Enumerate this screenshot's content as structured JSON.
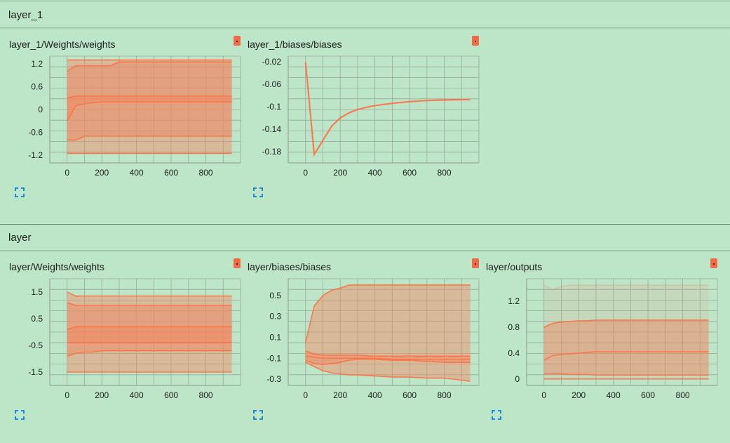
{
  "sections": [
    {
      "title": "layer_1"
    },
    {
      "title": "layer"
    }
  ],
  "charts": {
    "c1": {
      "title": "layer_1/Weights/weights",
      "xticks": [
        "0",
        "200",
        "400",
        "600",
        "800"
      ],
      "yticks": [
        "1.2",
        "0.6",
        "0",
        "-0.6",
        "-1.2"
      ]
    },
    "c2": {
      "title": "layer_1/biases/biases",
      "xticks": [
        "0",
        "200",
        "400",
        "600",
        "800"
      ],
      "yticks": [
        "-0.02",
        "-0.06",
        "-0.1",
        "-0.14",
        "-0.18"
      ]
    },
    "c3": {
      "title": "layer/Weights/weights",
      "xticks": [
        "0",
        "200",
        "400",
        "600",
        "800"
      ],
      "yticks": [
        "1.5",
        "0.5",
        "-0.5",
        "-1.5"
      ]
    },
    "c4": {
      "title": "layer/biases/biases",
      "xticks": [
        "0",
        "200",
        "400",
        "600",
        "800"
      ],
      "yticks": [
        "0.5",
        "0.3",
        "0.1",
        "-0.1",
        "-0.3"
      ]
    },
    "c5": {
      "title": "layer/outputs",
      "xticks": [
        "0",
        "200",
        "400",
        "600",
        "800"
      ],
      "yticks": [
        "1.2",
        "0.8",
        "0.4",
        "0"
      ]
    }
  },
  "colors": {
    "series": "#ff7043",
    "band": "#f4845f",
    "grid": "#9aa89e",
    "background": "#bde5c8"
  },
  "icons": {
    "flag": "orange-tag-icon",
    "expand": "fullscreen-icon"
  },
  "chart_data": [
    {
      "type": "area",
      "title": "layer_1/Weights/weights",
      "x": [
        0,
        50,
        100,
        150,
        200,
        250,
        300,
        400,
        500,
        600,
        700,
        800,
        950
      ],
      "ylim": [
        -1.4,
        1.4
      ],
      "series": [
        {
          "values": [
            1.3,
            1.3,
            1.3,
            1.3,
            1.3,
            1.3,
            1.3,
            1.3,
            1.3,
            1.3,
            1.3,
            1.3,
            1.3
          ]
        },
        {
          "values": [
            1.0,
            1.15,
            1.15,
            1.15,
            1.15,
            1.15,
            1.25,
            1.25,
            1.25,
            1.25,
            1.25,
            1.25,
            1.25
          ]
        },
        {
          "values": [
            0.3,
            0.35,
            0.35,
            0.35,
            0.35,
            0.35,
            0.35,
            0.35,
            0.35,
            0.35,
            0.35,
            0.35,
            0.35
          ]
        },
        {
          "values": [
            -0.3,
            0.1,
            0.15,
            0.18,
            0.2,
            0.2,
            0.2,
            0.2,
            0.2,
            0.2,
            0.2,
            0.2,
            0.2
          ]
        },
        {
          "values": [
            -0.8,
            -0.8,
            -0.7,
            -0.7,
            -0.7,
            -0.7,
            -0.7,
            -0.7,
            -0.7,
            -0.7,
            -0.7,
            -0.7,
            -0.7
          ]
        },
        {
          "values": [
            -1.15,
            -1.15,
            -1.15,
            -1.15,
            -1.15,
            -1.15,
            -1.15,
            -1.15,
            -1.15,
            -1.15,
            -1.15,
            -1.15,
            -1.15
          ]
        }
      ]
    },
    {
      "type": "line",
      "title": "layer_1/biases/biases",
      "x": [
        0,
        50,
        100,
        150,
        200,
        250,
        300,
        350,
        400,
        500,
        600,
        700,
        800,
        950
      ],
      "ylim": [
        -0.2,
        -0.01
      ],
      "series": [
        {
          "values": [
            -0.021,
            -0.185,
            -0.16,
            -0.135,
            -0.12,
            -0.111,
            -0.105,
            -0.101,
            -0.098,
            -0.094,
            -0.091,
            -0.089,
            -0.088,
            -0.087
          ]
        }
      ]
    },
    {
      "type": "area",
      "title": "layer/Weights/weights",
      "x": [
        0,
        50,
        100,
        150,
        200,
        250,
        300,
        400,
        500,
        600,
        700,
        800,
        950
      ],
      "ylim": [
        -2.0,
        2.0
      ],
      "series": [
        {
          "values": [
            1.5,
            1.35,
            1.35,
            1.35,
            1.35,
            1.35,
            1.35,
            1.35,
            1.35,
            1.35,
            1.35,
            1.35,
            1.35
          ]
        },
        {
          "values": [
            1.1,
            1.0,
            1.0,
            1.0,
            1.0,
            1.0,
            1.0,
            1.0,
            1.0,
            1.0,
            1.0,
            1.0,
            1.0
          ]
        },
        {
          "values": [
            0.1,
            0.2,
            0.2,
            0.2,
            0.2,
            0.2,
            0.2,
            0.2,
            0.2,
            0.2,
            0.2,
            0.2,
            0.2
          ]
        },
        {
          "values": [
            -0.4,
            -0.4,
            -0.4,
            -0.4,
            -0.4,
            -0.4,
            -0.4,
            -0.4,
            -0.4,
            -0.4,
            -0.4,
            -0.4,
            -0.4
          ]
        },
        {
          "values": [
            -0.9,
            -0.8,
            -0.75,
            -0.75,
            -0.7,
            -0.7,
            -0.7,
            -0.7,
            -0.7,
            -0.7,
            -0.7,
            -0.7,
            -0.7
          ]
        },
        {
          "values": [
            -1.5,
            -1.5,
            -1.5,
            -1.5,
            -1.5,
            -1.5,
            -1.5,
            -1.5,
            -1.5,
            -1.5,
            -1.5,
            -1.5,
            -1.5
          ]
        }
      ]
    },
    {
      "type": "area",
      "title": "layer/biases/biases",
      "x": [
        0,
        50,
        100,
        150,
        200,
        250,
        300,
        400,
        500,
        600,
        700,
        800,
        950
      ],
      "ylim": [
        -0.36,
        0.66
      ],
      "series": [
        {
          "values": [
            0.05,
            0.4,
            0.5,
            0.55,
            0.57,
            0.6,
            0.6,
            0.6,
            0.6,
            0.6,
            0.6,
            0.6,
            0.6
          ]
        },
        {
          "values": [
            -0.03,
            -0.06,
            -0.07,
            -0.07,
            -0.07,
            -0.07,
            -0.07,
            -0.08,
            -0.08,
            -0.08,
            -0.08,
            -0.08,
            -0.08
          ]
        },
        {
          "values": [
            -0.08,
            -0.09,
            -0.1,
            -0.1,
            -0.1,
            -0.1,
            -0.1,
            -0.1,
            -0.11,
            -0.11,
            -0.11,
            -0.11,
            -0.11
          ]
        },
        {
          "values": [
            -0.12,
            -0.15,
            -0.16,
            -0.15,
            -0.14,
            -0.12,
            -0.11,
            -0.11,
            -0.12,
            -0.12,
            -0.13,
            -0.14,
            -0.14
          ]
        },
        {
          "values": [
            -0.14,
            -0.18,
            -0.22,
            -0.24,
            -0.25,
            -0.26,
            -0.26,
            -0.27,
            -0.28,
            -0.28,
            -0.29,
            -0.29,
            -0.32
          ]
        }
      ]
    },
    {
      "type": "area",
      "title": "layer/outputs",
      "x": [
        0,
        50,
        100,
        150,
        200,
        250,
        300,
        400,
        500,
        600,
        700,
        800,
        950
      ],
      "ylim": [
        -0.1,
        1.55
      ],
      "series": [
        {
          "values": [
            1.45,
            1.38,
            1.43,
            1.45,
            1.45,
            1.45,
            1.45,
            1.45,
            1.45,
            1.45,
            1.45,
            1.45,
            1.45
          ]
        },
        {
          "values": [
            0.8,
            0.86,
            0.88,
            0.89,
            0.9,
            0.9,
            0.91,
            0.91,
            0.91,
            0.91,
            0.91,
            0.91,
            0.91
          ]
        },
        {
          "values": [
            0.29,
            0.36,
            0.38,
            0.39,
            0.4,
            0.41,
            0.42,
            0.42,
            0.42,
            0.42,
            0.42,
            0.42,
            0.42
          ]
        },
        {
          "values": [
            0.08,
            0.08,
            0.08,
            0.07,
            0.07,
            0.07,
            0.06,
            0.06,
            0.06,
            0.06,
            0.06,
            0.06,
            0.06
          ]
        },
        {
          "values": [
            0.0,
            0.0,
            0.0,
            0.0,
            0.0,
            0.0,
            0.0,
            0.0,
            0.0,
            0.0,
            0.0,
            0.0,
            0.0
          ]
        }
      ]
    }
  ]
}
